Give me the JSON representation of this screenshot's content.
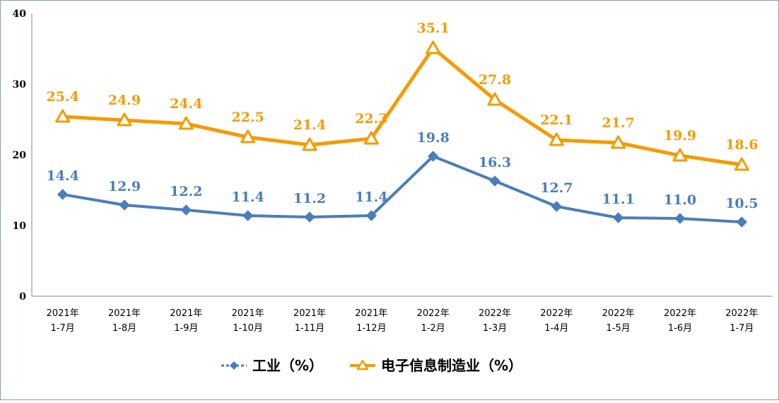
{
  "chart_data": {
    "type": "line",
    "categories": [
      [
        "2021年",
        "1-7月"
      ],
      [
        "2021年",
        "1-8月"
      ],
      [
        "2021年",
        "1-9月"
      ],
      [
        "2021年",
        "1-10月"
      ],
      [
        "2021年",
        "1-11月"
      ],
      [
        "2021年",
        "1-12月"
      ],
      [
        "2022年",
        "1-2月"
      ],
      [
        "2022年",
        "1-3月"
      ],
      [
        "2022年",
        "1-4月"
      ],
      [
        "2022年",
        "1-5月"
      ],
      [
        "2022年",
        "1-6月"
      ],
      [
        "2022年",
        "1-7月"
      ]
    ],
    "series": [
      {
        "name": "工业（%）",
        "color": "#4a7ebb",
        "marker": "diamond",
        "values": [
          14.4,
          12.9,
          12.2,
          11.4,
          11.2,
          11.4,
          19.8,
          16.3,
          12.7,
          11.1,
          11.0,
          10.5
        ],
        "labels": [
          "14.4",
          "12.9",
          "12.2",
          "11.4",
          "11.2",
          "11.4",
          "19.8",
          "16.3",
          "12.7",
          "11.1",
          "11.0",
          "10.5"
        ]
      },
      {
        "name": "电子信息制造业（%）",
        "color": "#f59b00",
        "marker": "triangle",
        "values": [
          25.4,
          24.9,
          24.4,
          22.5,
          21.4,
          22.3,
          35.1,
          27.8,
          22.1,
          21.7,
          19.9,
          18.6
        ],
        "labels": [
          "25.4",
          "24.9",
          "24.4",
          "22.5",
          "21.4",
          "22.3",
          "35.1",
          "27.8",
          "22.1",
          "21.7",
          "19.9",
          "18.6"
        ]
      }
    ],
    "yticks": [
      "0",
      "10",
      "20",
      "30",
      "40"
    ],
    "ylim": [
      0,
      40
    ],
    "grid": false,
    "legend_position": "bottom"
  }
}
